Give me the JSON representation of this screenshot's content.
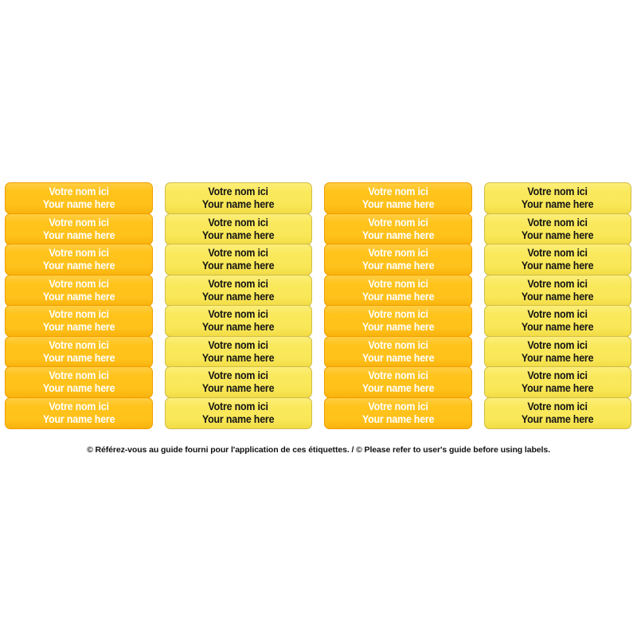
{
  "page": {
    "background_color": "#ffffff"
  },
  "label": {
    "line1": "Votre nom ici",
    "line2": "Your name here"
  },
  "sheet": {
    "rows_per_column": 8,
    "columns": [
      {
        "style": "orange"
      },
      {
        "style": "yellow"
      },
      {
        "style": "orange"
      },
      {
        "style": "yellow"
      }
    ],
    "colors": {
      "orange_fill": "#FFC31A",
      "orange_border": "#EF9D00",
      "orange_text": "#FFFFFF",
      "yellow_fill": "#FAE95C",
      "yellow_border": "#CFBC47",
      "yellow_text": "#141414"
    }
  },
  "caption": {
    "text": "© Référez-vous au guide fourni pour l'application de ces étiquettes. / © Please refer to user's guide before using labels."
  }
}
